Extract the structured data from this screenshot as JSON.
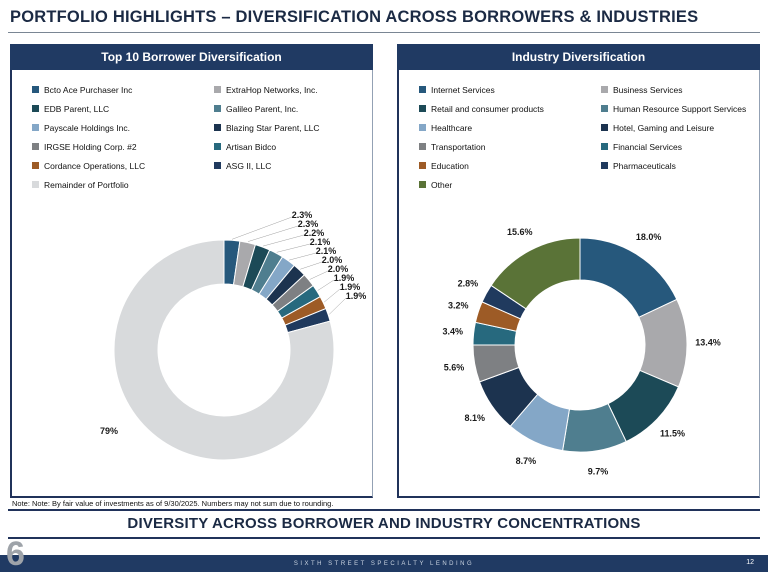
{
  "page": {
    "title": "PORTFOLIO HIGHLIGHTS – DIVERSIFICATION ACROSS BORROWERS & INDUSTRIES",
    "note": "Note: Note: By fair value of investments as of 9/30/2025. Numbers may not sum due to rounding.",
    "banner": "DIVERSITY ACROSS BORROWER AND INDUSTRY CONCENTRATIONS",
    "footer_text": "SIXTH STREET SPECIALTY LENDING",
    "page_number": "6",
    "slide_number": "12"
  },
  "colors": {
    "header_bar": "#203A63",
    "accent_navy": "#1B2A44",
    "remainder_gray": "#D8DADC"
  },
  "chart_data": [
    {
      "type": "pie",
      "donut": true,
      "title": "Top 10 Borrower Diversification",
      "legend_position": "top",
      "series": [
        {
          "label": "Bcto Ace Purchaser Inc",
          "value": 2.3,
          "display": "2.3%",
          "color": "#26587C"
        },
        {
          "label": "ExtraHop Networks, Inc.",
          "value": 2.3,
          "display": "2.3%",
          "color": "#A9A9AC"
        },
        {
          "label": "EDB Parent, LLC",
          "value": 2.2,
          "display": "2.2%",
          "color": "#1C4A57"
        },
        {
          "label": "Galileo Parent, Inc.",
          "value": 2.1,
          "display": "2.1%",
          "color": "#4F7E8F"
        },
        {
          "label": "Payscale Holdings Inc.",
          "value": 2.1,
          "display": "2.1%",
          "color": "#84A7C7"
        },
        {
          "label": "Blazing Star Parent, LLC",
          "value": 2.0,
          "display": "2.0%",
          "color": "#1C334F"
        },
        {
          "label": "IRGSE Holding Corp. #2",
          "value": 2.0,
          "display": "2.0%",
          "color": "#7E8083"
        },
        {
          "label": "Artisan Bidco",
          "value": 1.9,
          "display": "1.9%",
          "color": "#27697E"
        },
        {
          "label": "Cordance Operations, LLC",
          "value": 1.9,
          "display": "1.9%",
          "color": "#9D5B26"
        },
        {
          "label": "ASG II, LLC",
          "value": 1.9,
          "display": "1.9%",
          "color": "#203A5E"
        },
        {
          "label": "Remainder of Portfolio",
          "value": 79,
          "display": "79%",
          "color": "#D8DADC"
        }
      ]
    },
    {
      "type": "pie",
      "donut": true,
      "title": "Industry Diversification",
      "legend_position": "top",
      "series": [
        {
          "label": "Internet Services",
          "value": 18.0,
          "display": "18.0%",
          "color": "#26587C"
        },
        {
          "label": "Business Services",
          "value": 13.4,
          "display": "13.4%",
          "color": "#A9A9AC"
        },
        {
          "label": "Retail and consumer products",
          "value": 11.5,
          "display": "11.5%",
          "color": "#1C4A57"
        },
        {
          "label": "Human Resource Support Services",
          "value": 9.7,
          "display": "9.7%",
          "color": "#4F7E8F"
        },
        {
          "label": "Healthcare",
          "value": 8.7,
          "display": "8.7%",
          "color": "#84A7C7"
        },
        {
          "label": "Hotel, Gaming and Leisure",
          "value": 8.1,
          "display": "8.1%",
          "color": "#1C334F"
        },
        {
          "label": "Transportation",
          "value": 5.6,
          "display": "5.6%",
          "color": "#7E8083"
        },
        {
          "label": "Financial Services",
          "value": 3.4,
          "display": "3.4%",
          "color": "#27697E"
        },
        {
          "label": "Education",
          "value": 3.2,
          "display": "3.2%",
          "color": "#9D5B26"
        },
        {
          "label": "Pharmaceuticals",
          "value": 2.8,
          "display": "2.8%",
          "color": "#203A5E"
        },
        {
          "label": "Other",
          "value": 15.6,
          "display": "15.6%",
          "color": "#5A7337"
        }
      ]
    }
  ]
}
